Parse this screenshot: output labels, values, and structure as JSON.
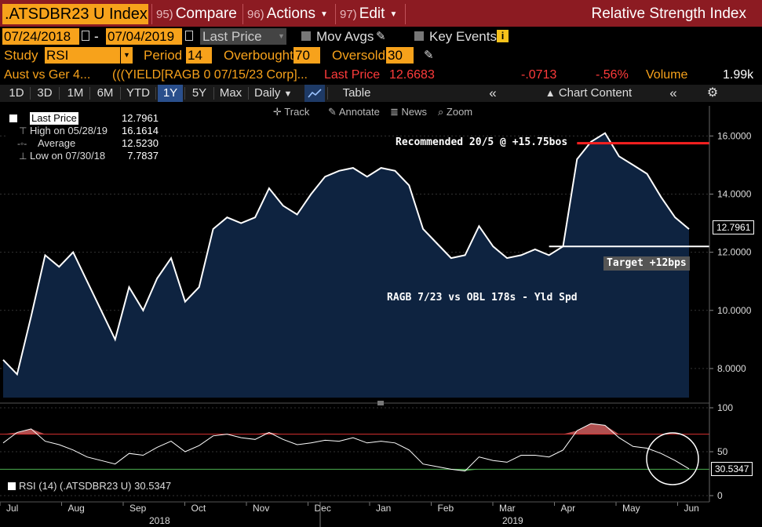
{
  "header": {
    "ticker": ".ATSDBR23 U Index",
    "menu": [
      {
        "num": "95)",
        "label": "Compare"
      },
      {
        "num": "96)",
        "label": "Actions"
      },
      {
        "num": "97)",
        "label": "Edit"
      }
    ],
    "study_title": "Relative Strength Index"
  },
  "controls": {
    "start_date": "07/24/2018",
    "dash": "-",
    "end_date": "07/04/2019",
    "price_field": "Last Price",
    "mov_avgs": "Mov Avgs",
    "key_events": "Key Events",
    "study_label": "Study",
    "study_value": "RSI",
    "period_label": "Period",
    "period_value": "14",
    "overbought_label": "Overbought",
    "overbought_value": "70",
    "oversold_label": "Oversold",
    "oversold_value": "30"
  },
  "security_line": {
    "name": "Aust vs Ger 4...",
    "formula": "(((YIELD[RAGB 0 07/15/23 Corp]...",
    "last_price_label": "Last Price",
    "last_price": "12.6683",
    "change": "-.0713",
    "pct_change": "-.56%",
    "volume_label": "Volume",
    "volume": "1.99k"
  },
  "toolbar": {
    "periods": [
      "1D",
      "3D",
      "1M",
      "6M",
      "YTD",
      "1Y",
      "5Y",
      "Max"
    ],
    "active_period": "1Y",
    "frequency": "Daily",
    "table": "Table",
    "chart_content": "Chart Content",
    "track": "Track",
    "annotate": "Annotate",
    "news": "News",
    "zoom": "Zoom"
  },
  "legend": {
    "last_price_label": "Last Price",
    "last_price_value": "12.7961",
    "high_label": "High on 05/28/19",
    "high_value": "16.1614",
    "average_label": "Average",
    "average_value": "12.5230",
    "low_label": "Low on 07/30/18",
    "low_value": "7.7837"
  },
  "annotations": {
    "recommended": "Recommended 20/5 @ +15.75bos",
    "target": "Target +12bps",
    "spread_label": "RAGB 7/23 vs OBL 178s - Yld Spd",
    "price_tag": "12.7961",
    "rsi_tag": "30.5347",
    "rsi_legend": "RSI (14) (.ATSDBR23 U) 30.5347"
  },
  "colors": {
    "header_red": "#8c1b22",
    "amber": "#f7a21b",
    "area_fill": "#0e2340",
    "line": "#ffffff",
    "overbought_line": "#d93030",
    "oversold_line": "#4caf50",
    "rsi_over": "#b05050",
    "rsi_under": "#4f9a4f"
  },
  "chart_data": [
    {
      "type": "area",
      "y_ticks": [
        "16.0000",
        "14.0000",
        "12.0000",
        "10.0000",
        "8.0000"
      ],
      "ylim": [
        7.0,
        16.9
      ],
      "x_labels": [
        "Jul",
        "Aug",
        "Sep",
        "Oct",
        "Nov",
        "Dec",
        "Jan",
        "Feb",
        "Mar",
        "Apr",
        "May",
        "Jun"
      ],
      "year_labels": [
        "2018",
        "2019"
      ],
      "reference_lines": [
        15.75,
        12.2
      ],
      "x": [
        "07/24/18",
        "07/31/18",
        "08/07/18",
        "08/14/18",
        "08/21/18",
        "08/28/18",
        "09/04/18",
        "09/11/18",
        "09/18/18",
        "09/25/18",
        "10/02/18",
        "10/09/18",
        "10/16/18",
        "10/23/18",
        "10/30/18",
        "11/06/18",
        "11/13/18",
        "11/20/18",
        "11/27/18",
        "12/04/18",
        "12/11/18",
        "12/18/18",
        "12/25/18",
        "01/01/19",
        "01/08/19",
        "01/15/19",
        "01/22/19",
        "01/29/19",
        "02/05/19",
        "02/12/19",
        "02/19/19",
        "02/26/19",
        "03/05/19",
        "03/12/19",
        "03/19/19",
        "03/26/19",
        "04/02/19",
        "04/09/19",
        "04/16/19",
        "04/23/19",
        "04/30/19",
        "05/07/19",
        "05/14/19",
        "05/21/19",
        "05/28/19",
        "06/04/19",
        "06/11/19",
        "06/18/19",
        "06/25/19",
        "07/04/19"
      ],
      "values": [
        8.3,
        7.8,
        9.8,
        11.9,
        11.5,
        12.0,
        11.0,
        10.0,
        9.0,
        10.8,
        10.0,
        11.1,
        11.8,
        10.3,
        10.8,
        12.8,
        13.2,
        13.0,
        13.2,
        14.2,
        13.6,
        13.3,
        14.0,
        14.6,
        14.8,
        14.9,
        14.6,
        14.9,
        14.8,
        14.3,
        12.8,
        12.3,
        11.8,
        11.9,
        12.9,
        12.2,
        11.8,
        11.9,
        12.1,
        11.9,
        12.2,
        15.2,
        15.8,
        16.1,
        15.3,
        15.0,
        14.7,
        13.9,
        13.2,
        12.7961
      ],
      "series": [
        {
          "name": "Last Price"
        }
      ]
    },
    {
      "type": "line",
      "y_ticks": [
        "100",
        "50",
        "0"
      ],
      "ylim": [
        0,
        100
      ],
      "overbought": 70,
      "oversold": 30,
      "x": [
        "07/24/18",
        "07/31/18",
        "08/07/18",
        "08/14/18",
        "08/21/18",
        "08/28/18",
        "09/04/18",
        "09/11/18",
        "09/18/18",
        "09/25/18",
        "10/02/18",
        "10/09/18",
        "10/16/18",
        "10/23/18",
        "10/30/18",
        "11/06/18",
        "11/13/18",
        "11/20/18",
        "11/27/18",
        "12/04/18",
        "12/11/18",
        "12/18/18",
        "12/25/18",
        "01/01/19",
        "01/08/19",
        "01/15/19",
        "01/22/19",
        "01/29/19",
        "02/05/19",
        "02/12/19",
        "02/19/19",
        "02/26/19",
        "03/05/19",
        "03/12/19",
        "03/19/19",
        "03/26/19",
        "04/02/19",
        "04/09/19",
        "04/16/19",
        "04/23/19",
        "04/30/19",
        "05/07/19",
        "05/14/19",
        "05/21/19",
        "05/28/19",
        "06/04/19",
        "06/11/19",
        "06/18/19",
        "06/25/19",
        "07/04/19"
      ],
      "values": [
        60,
        72,
        76,
        62,
        58,
        52,
        44,
        40,
        36,
        48,
        46,
        55,
        62,
        50,
        57,
        68,
        70,
        66,
        64,
        72,
        64,
        58,
        60,
        63,
        62,
        66,
        60,
        62,
        60,
        52,
        36,
        33,
        30,
        28,
        44,
        40,
        38,
        46,
        46,
        44,
        52,
        74,
        82,
        80,
        66,
        56,
        54,
        48,
        40,
        30.5347
      ],
      "series": [
        {
          "name": "RSI (14)"
        }
      ]
    }
  ]
}
